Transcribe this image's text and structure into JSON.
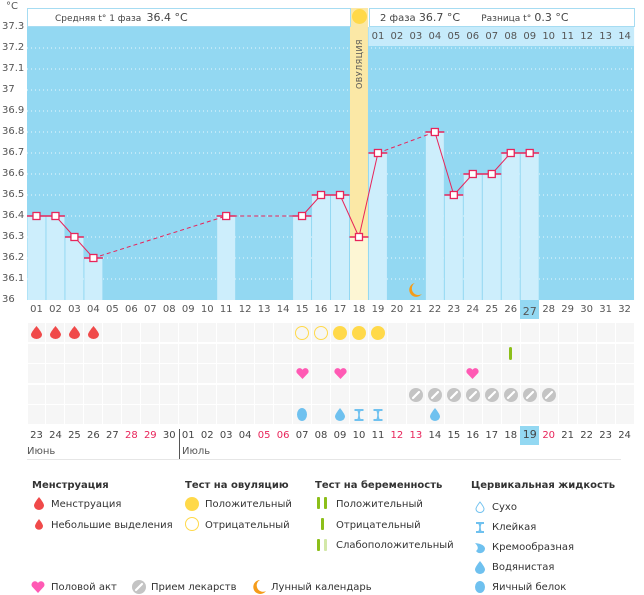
{
  "header": {
    "unit": "°C",
    "phase1_label": "Средняя t° 1 фаза",
    "phase1_value": "36.4 °C",
    "phase2_label": "2 фаза",
    "phase2_value": "36.7 °C",
    "diff_label": "Разница t°",
    "diff_value": "0.3 °C",
    "ovulation_label": "ОВУЛЯЦИЯ"
  },
  "colors": {
    "bg": "#93d8f2",
    "bar": "#cdeefc",
    "ovulation_top": "#fbe8a6",
    "ovulation_bottom": "#fdf6d4",
    "line": "#e8245a",
    "blood": "#f04a4a",
    "heart": "#ff5ab4",
    "sun": "#ffd94a",
    "pill": "#c4c4c4",
    "moon": "#f59c1a",
    "preg": "#8cbf1a",
    "cm": "#6fc1ef",
    "highlight": "#93d8f2"
  },
  "chart_data": {
    "type": "line",
    "title": "",
    "ylabel": "°C",
    "ylim": [
      36.0,
      37.3
    ],
    "yticks": [
      "37.3",
      "37.2",
      "37.1",
      "37",
      "36.9",
      "36.8",
      "36.7",
      "36.6",
      "36.5",
      "36.4",
      "36.3",
      "36.2",
      "36.1",
      "36"
    ],
    "cycle_days": [
      "01",
      "02",
      "03",
      "04",
      "05",
      "06",
      "07",
      "08",
      "09",
      "10",
      "11",
      "12",
      "13",
      "14",
      "15",
      "16",
      "17",
      "18",
      "19",
      "20",
      "21",
      "22",
      "23",
      "24",
      "25",
      "26",
      "27",
      "28",
      "29",
      "30",
      "31",
      "32"
    ],
    "current_cycle_day": "27",
    "ovulation_day": 18,
    "phase2_days": [
      "01",
      "02",
      "03",
      "04",
      "05",
      "06",
      "07",
      "08",
      "09",
      "10",
      "11",
      "12",
      "13",
      "14"
    ],
    "series": [
      {
        "name": "Температура",
        "points": [
          {
            "day": 1,
            "t": 36.4
          },
          {
            "day": 2,
            "t": 36.4
          },
          {
            "day": 3,
            "t": 36.3
          },
          {
            "day": 4,
            "t": 36.2
          },
          {
            "day": 11,
            "t": 36.4
          },
          {
            "day": 15,
            "t": 36.4
          },
          {
            "day": 16,
            "t": 36.5
          },
          {
            "day": 17,
            "t": 36.5
          },
          {
            "day": 18,
            "t": 36.3
          },
          {
            "day": 19,
            "t": 36.7
          },
          {
            "day": 22,
            "t": 36.8
          },
          {
            "day": 23,
            "t": 36.5
          },
          {
            "day": 24,
            "t": 36.6
          },
          {
            "day": 25,
            "t": 36.6
          },
          {
            "day": 26,
            "t": 36.7
          },
          {
            "day": 27,
            "t": 36.7
          }
        ]
      }
    ],
    "moon_day": 21
  },
  "symbols": {
    "menstruation": [
      1,
      2,
      3,
      4
    ],
    "ovulation_test_negative": [
      15,
      16
    ],
    "ovulation_test_positive": [
      17,
      18,
      19
    ],
    "pregnancy_test_negative": [
      26
    ],
    "intercourse": [
      15,
      17,
      24
    ],
    "medication": [
      21,
      22,
      23,
      24,
      25,
      26,
      27,
      28
    ],
    "cervical_creamy": [
      15
    ],
    "cervical_watery": [
      17,
      22
    ],
    "cervical_sticky": [
      18,
      19
    ]
  },
  "calendar": {
    "dates": [
      "23",
      "24",
      "25",
      "26",
      "27",
      "28",
      "29",
      "30",
      "01",
      "02",
      "03",
      "04",
      "05",
      "06",
      "07",
      "08",
      "09",
      "10",
      "11",
      "12",
      "13",
      "14",
      "15",
      "16",
      "17",
      "18",
      "19",
      "20",
      "21",
      "22",
      "23",
      "24"
    ],
    "red_indices": [
      5,
      6,
      12,
      13,
      19,
      20,
      27
    ],
    "today_index": 26,
    "months": [
      "Июнь",
      "Июль"
    ]
  },
  "legend": {
    "menstruation": {
      "title": "Менструация",
      "items": [
        "Менструация",
        "Небольшие выделения"
      ]
    },
    "ovulation_test": {
      "title": "Тест на овуляцию",
      "items": [
        "Положительный",
        "Отрицательный"
      ]
    },
    "pregnancy_test": {
      "title": "Тест на беременность",
      "items": [
        "Положительный",
        "Отрицательный",
        "Слабоположительный"
      ]
    },
    "cervical": {
      "title": "Цервикальная жидкость",
      "items": [
        "Сухо",
        "Клейкая",
        "Кремообразная",
        "Водянистая",
        "Яичный белок"
      ]
    },
    "other": [
      "Половой акт",
      "Прием лекарств",
      "Лунный календарь"
    ]
  }
}
